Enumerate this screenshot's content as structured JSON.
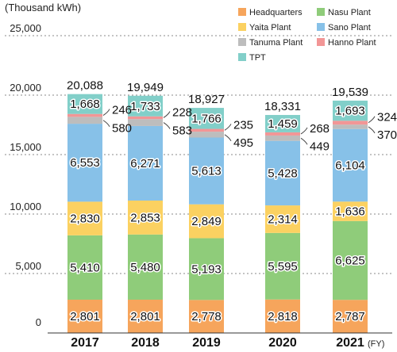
{
  "chart_data": {
    "type": "bar",
    "stacked": true,
    "unit_label": "(Thousand kWh)",
    "x_suffix": "(FY)",
    "categories": [
      "2017",
      "2018",
      "2019",
      "2020",
      "2021"
    ],
    "ylim": [
      0,
      25000
    ],
    "yticks": [
      "0",
      "5,000",
      "10,000",
      "15,000",
      "20,000",
      "25,000"
    ],
    "grid": "dashed-horizontal",
    "legend_position": "top-right",
    "series": [
      {
        "name": "Headquarters",
        "color": "#f6a55c",
        "values": [
          2801,
          2801,
          2778,
          2818,
          2787
        ],
        "labels": [
          "2,801",
          "2,801",
          "2,778",
          "2,818",
          "2,787"
        ]
      },
      {
        "name": "Nasu Plant",
        "color": "#8fcc7a",
        "values": [
          5410,
          5480,
          5193,
          5595,
          6625
        ],
        "labels": [
          "5,410",
          "5,480",
          "5,193",
          "5,595",
          "6,625"
        ]
      },
      {
        "name": "Yaita Plant",
        "color": "#fbd161",
        "values": [
          2830,
          2853,
          2849,
          2314,
          1636
        ],
        "labels": [
          "2,830",
          "2,853",
          "2,849",
          "2,314",
          "1,636"
        ]
      },
      {
        "name": "Sano Plant",
        "color": "#87c1e8",
        "values": [
          6553,
          6271,
          5613,
          5428,
          6104
        ],
        "labels": [
          "6,553",
          "6,271",
          "5,613",
          "5,428",
          "6,104"
        ]
      },
      {
        "name": "Tanuma Plant",
        "color": "#bdbdbd",
        "values": [
          580,
          583,
          495,
          449,
          370
        ],
        "labels": [
          "580",
          "583",
          "495",
          "449",
          "370"
        ]
      },
      {
        "name": "Hanno Plant",
        "color": "#f29696",
        "values": [
          246,
          228,
          235,
          268,
          324
        ],
        "labels": [
          "246",
          "228",
          "235",
          "268",
          "324"
        ]
      },
      {
        "name": "TPT",
        "color": "#82cfc9",
        "values": [
          1668,
          1733,
          1766,
          1459,
          1693
        ],
        "labels": [
          "1,668",
          "1,733",
          "1,766",
          "1,459",
          "1,693"
        ]
      }
    ],
    "totals": [
      "20,088",
      "19,949",
      "18,927",
      "18,331",
      "19,539"
    ]
  }
}
